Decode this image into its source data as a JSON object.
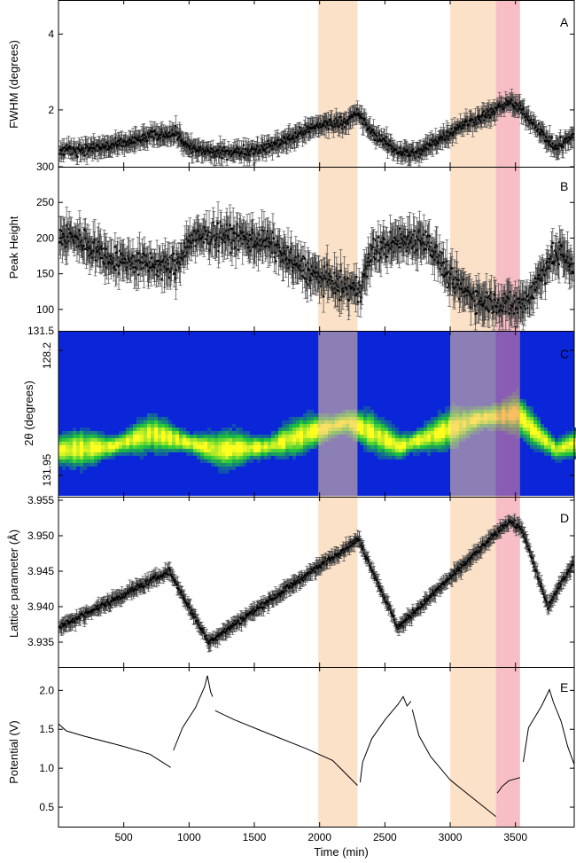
{
  "chart_data": {
    "type": "multi-panel",
    "shared_x": {
      "label": "Time (min)",
      "range": [
        0,
        3950
      ],
      "ticks": [
        500,
        1000,
        1500,
        2000,
        2500,
        3000,
        3500
      ]
    },
    "shaded_regions": [
      {
        "from": 1990,
        "to": 2290,
        "color": "#f7c99a"
      },
      {
        "from": 3000,
        "to": 3350,
        "color": "#f7c99a"
      },
      {
        "from": 3350,
        "to": 3535,
        "color": "#f08a96"
      }
    ],
    "panels": [
      {
        "letter": "A",
        "type": "scatter-errorbar",
        "ylabel": "FWHM (degrees)",
        "ylim": [
          0.5,
          4.9
        ],
        "yticks": [
          "2",
          "4"
        ],
        "ytick_values": [
          2,
          4
        ],
        "top_tick_label": "",
        "keypoints": [
          [
            0,
            0.9
          ],
          [
            300,
            1.0
          ],
          [
            500,
            1.1
          ],
          [
            700,
            1.3
          ],
          [
            900,
            1.4
          ],
          [
            1000,
            1.0
          ],
          [
            1200,
            0.85
          ],
          [
            1400,
            0.9
          ],
          [
            1600,
            1.0
          ],
          [
            1800,
            1.3
          ],
          [
            2000,
            1.6
          ],
          [
            2200,
            1.7
          ],
          [
            2300,
            1.9
          ],
          [
            2400,
            1.4
          ],
          [
            2600,
            0.9
          ],
          [
            2750,
            0.85
          ],
          [
            2900,
            1.2
          ],
          [
            3100,
            1.6
          ],
          [
            3300,
            1.9
          ],
          [
            3450,
            2.2
          ],
          [
            3550,
            2.0
          ],
          [
            3700,
            1.4
          ],
          [
            3800,
            1.0
          ],
          [
            3950,
            1.3
          ]
        ],
        "noise": 0.12,
        "err": 0.2
      },
      {
        "letter": "B",
        "type": "scatter-errorbar",
        "ylabel": "Peak Height",
        "ylim": [
          70,
          300
        ],
        "yticks": [
          "300",
          "250",
          "200",
          "150",
          "100"
        ],
        "ytick_values": [
          300,
          250,
          200,
          150,
          100
        ],
        "keypoints": [
          [
            0,
            205
          ],
          [
            200,
            195
          ],
          [
            400,
            170
          ],
          [
            600,
            165
          ],
          [
            800,
            160
          ],
          [
            900,
            160
          ],
          [
            1000,
            195
          ],
          [
            1200,
            205
          ],
          [
            1400,
            200
          ],
          [
            1600,
            195
          ],
          [
            1800,
            165
          ],
          [
            2000,
            145
          ],
          [
            2200,
            130
          ],
          [
            2300,
            125
          ],
          [
            2400,
            180
          ],
          [
            2600,
            195
          ],
          [
            2800,
            200
          ],
          [
            2900,
            175
          ],
          [
            3000,
            140
          ],
          [
            3200,
            115
          ],
          [
            3350,
            110
          ],
          [
            3500,
            105
          ],
          [
            3600,
            115
          ],
          [
            3750,
            165
          ],
          [
            3850,
            180
          ],
          [
            3950,
            160
          ]
        ],
        "noise": 15,
        "err": 20
      },
      {
        "letter": "C",
        "type": "heatmap",
        "ylabel": "2θ (degrees)",
        "top_tick_label": "131.5",
        "yticks": [
          "128.2",
          "131.95"
        ],
        "band_center": [
          [
            0,
            0.72
          ],
          [
            400,
            0.7
          ],
          [
            700,
            0.62
          ],
          [
            1000,
            0.68
          ],
          [
            1200,
            0.72
          ],
          [
            1600,
            0.7
          ],
          [
            1900,
            0.62
          ],
          [
            2200,
            0.55
          ],
          [
            2400,
            0.62
          ],
          [
            2600,
            0.7
          ],
          [
            2900,
            0.62
          ],
          [
            3200,
            0.53
          ],
          [
            3500,
            0.5
          ],
          [
            3650,
            0.62
          ],
          [
            3800,
            0.72
          ],
          [
            3950,
            0.68
          ]
        ],
        "colormap": [
          "#0b26d8",
          "#1fc43a",
          "#ffff20"
        ]
      },
      {
        "letter": "D",
        "type": "scatter-errorbar",
        "ylabel": "Lattice parameter (Å)",
        "ylim": [
          3.9315,
          3.9555
        ],
        "yticks": [
          "3.955",
          "3.950",
          "3.945",
          "3.940",
          "3.935"
        ],
        "ytick_values": [
          3.955,
          3.95,
          3.945,
          3.94,
          3.935
        ],
        "keypoints": [
          [
            0,
            3.937
          ],
          [
            850,
            3.945
          ],
          [
            1150,
            3.935
          ],
          [
            2300,
            3.9495
          ],
          [
            2600,
            3.937
          ],
          [
            3450,
            3.952
          ],
          [
            3550,
            3.951
          ],
          [
            3750,
            3.94
          ],
          [
            3950,
            3.9465
          ]
        ],
        "noise": 0.0004,
        "err": 0.0008
      },
      {
        "letter": "E",
        "type": "line",
        "ylabel": "Potential (V)",
        "ylim": [
          0.25,
          2.3
        ],
        "yticks": [
          "2.0",
          "1.5",
          "1.0",
          "0.5"
        ],
        "ytick_values": [
          2.0,
          1.5,
          1.0,
          0.5
        ],
        "segments": [
          [
            [
              0,
              1.57
            ],
            [
              60,
              1.48
            ],
            [
              200,
              1.41
            ],
            [
              500,
              1.28
            ],
            [
              700,
              1.18
            ],
            [
              860,
              1.01
            ]
          ],
          [
            [
              880,
              1.23
            ],
            [
              950,
              1.52
            ],
            [
              1050,
              1.78
            ],
            [
              1120,
              2.05
            ],
            [
              1140,
              2.19
            ],
            [
              1165,
              1.98
            ],
            [
              1180,
              1.92
            ]
          ],
          [
            [
              1200,
              1.74
            ],
            [
              1350,
              1.62
            ],
            [
              1600,
              1.45
            ],
            [
              1900,
              1.25
            ],
            [
              2100,
              1.1
            ],
            [
              2290,
              0.78
            ]
          ],
          [
            [
              2310,
              0.82
            ],
            [
              2330,
              1.08
            ],
            [
              2400,
              1.38
            ],
            [
              2500,
              1.62
            ],
            [
              2600,
              1.82
            ],
            [
              2640,
              1.92
            ],
            [
              2670,
              1.8
            ],
            [
              2700,
              1.86
            ]
          ],
          [
            [
              2710,
              1.75
            ],
            [
              2760,
              1.42
            ],
            [
              2850,
              1.15
            ],
            [
              3000,
              0.85
            ],
            [
              3200,
              0.58
            ],
            [
              3350,
              0.38
            ]
          ],
          [
            [
              3360,
              0.68
            ],
            [
              3400,
              0.77
            ],
            [
              3450,
              0.84
            ],
            [
              3535,
              0.88
            ]
          ],
          [
            [
              3560,
              1.08
            ],
            [
              3600,
              1.52
            ],
            [
              3700,
              1.8
            ],
            [
              3760,
              2.01
            ],
            [
              3790,
              1.85
            ],
            [
              3850,
              1.6
            ],
            [
              3900,
              1.28
            ],
            [
              3950,
              1.05
            ]
          ]
        ]
      }
    ]
  }
}
